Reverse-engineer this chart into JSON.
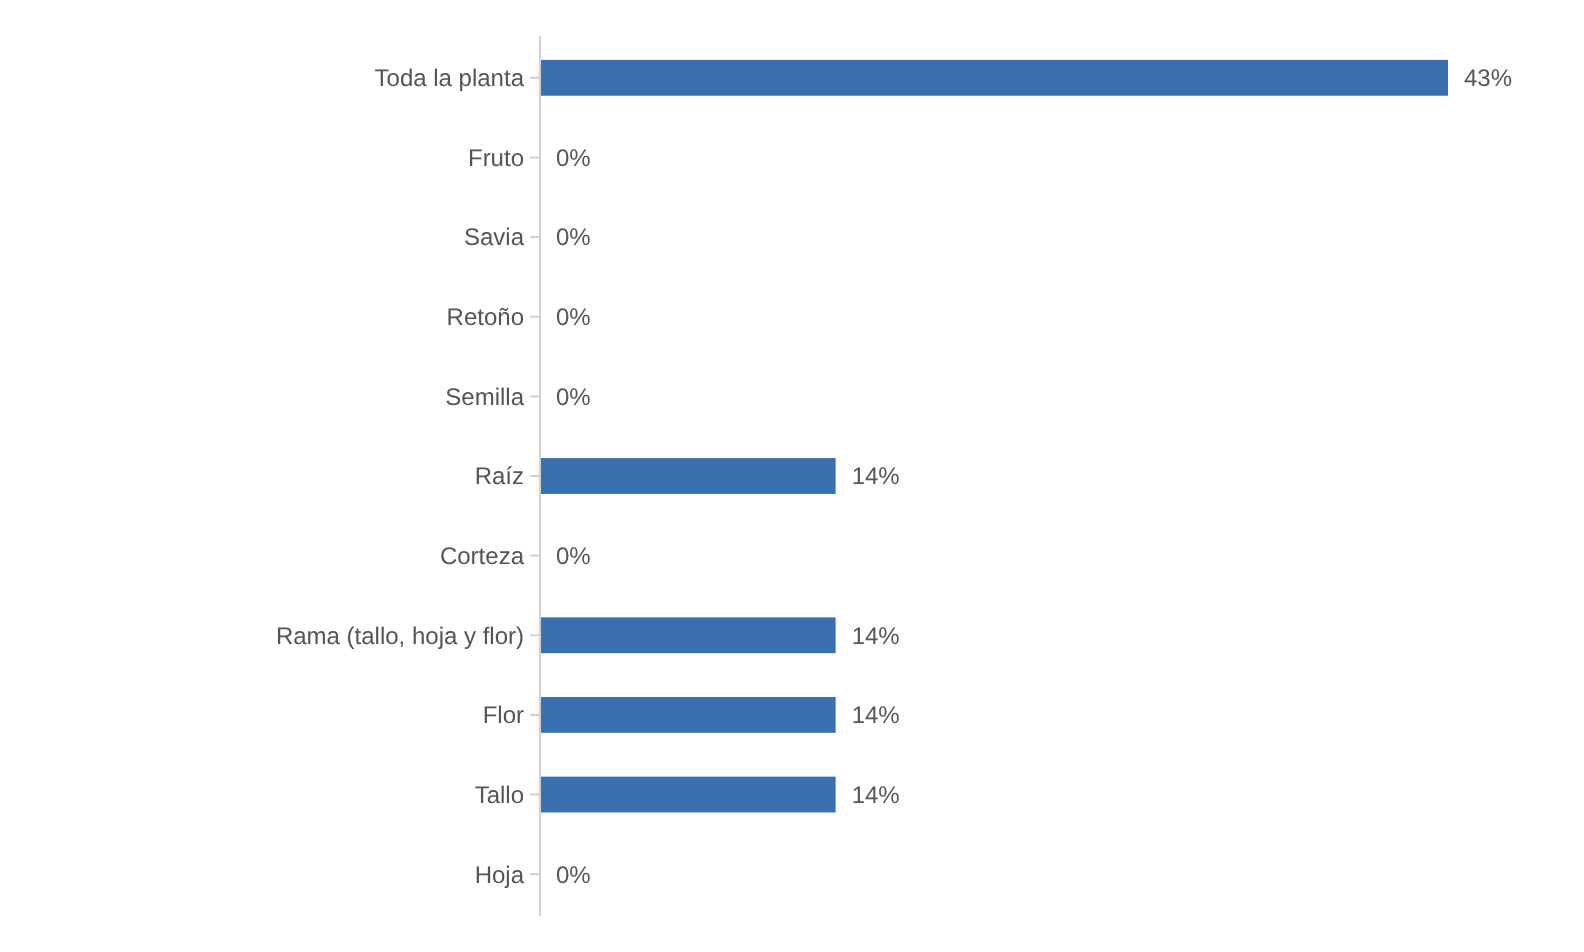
{
  "chart_data": {
    "type": "bar",
    "orientation": "horizontal",
    "categories": [
      "Toda la planta",
      "Fruto",
      "Savia",
      "Retoño",
      "Semilla",
      "Raíz",
      "Corteza",
      "Rama (tallo, hoja y flor)",
      "Flor",
      "Tallo",
      "Hoja"
    ],
    "values": [
      43,
      0,
      0,
      0,
      0,
      14,
      0,
      14,
      14,
      14,
      0
    ],
    "value_labels": [
      "43%",
      "0%",
      "0%",
      "0%",
      "0%",
      "14%",
      "0%",
      "14%",
      "14%",
      "14%",
      "0%"
    ],
    "color": "#3a6fb0"
  }
}
